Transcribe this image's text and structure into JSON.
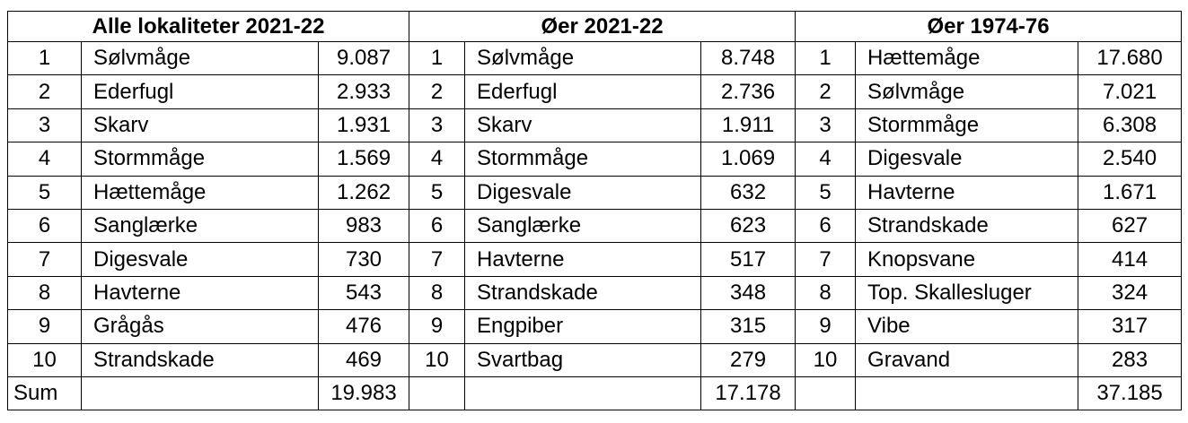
{
  "sections": [
    {
      "title": "Alle lokaliteter 2021-22",
      "rows": [
        {
          "rank": "1",
          "species": "Sølvmåge",
          "count": "9.087"
        },
        {
          "rank": "2",
          "species": "Ederfugl",
          "count": "2.933"
        },
        {
          "rank": "3",
          "species": "Skarv",
          "count": "1.931"
        },
        {
          "rank": "4",
          "species": "Stormmåge",
          "count": "1.569"
        },
        {
          "rank": "5",
          "species": "Hættemåge",
          "count": "1.262"
        },
        {
          "rank": "6",
          "species": "Sanglærke",
          "count": "983"
        },
        {
          "rank": "7",
          "species": "Digesvale",
          "count": "730"
        },
        {
          "rank": "8",
          "species": "Havterne",
          "count": "543"
        },
        {
          "rank": "9",
          "species": "Grågås",
          "count": "476"
        },
        {
          "rank": "10",
          "species": "Strandskade",
          "count": "469"
        }
      ],
      "sum": "19.983"
    },
    {
      "title": "Øer 2021-22",
      "rows": [
        {
          "rank": "1",
          "species": "Sølvmåge",
          "count": "8.748"
        },
        {
          "rank": "2",
          "species": "Ederfugl",
          "count": "2.736"
        },
        {
          "rank": "3",
          "species": "Skarv",
          "count": "1.911"
        },
        {
          "rank": "4",
          "species": "Stormmåge",
          "count": "1.069"
        },
        {
          "rank": "5",
          "species": "Digesvale",
          "count": "632"
        },
        {
          "rank": "6",
          "species": "Sanglærke",
          "count": "623"
        },
        {
          "rank": "7",
          "species": "Havterne",
          "count": "517"
        },
        {
          "rank": "8",
          "species": "Strandskade",
          "count": "348"
        },
        {
          "rank": "9",
          "species": "Engpiber",
          "count": "315"
        },
        {
          "rank": "10",
          "species": "Svartbag",
          "count": "279"
        }
      ],
      "sum": "17.178"
    },
    {
      "title": "Øer 1974-76",
      "rows": [
        {
          "rank": "1",
          "species": "Hættemåge",
          "count": "17.680"
        },
        {
          "rank": "2",
          "species": "Sølvmåge",
          "count": "7.021"
        },
        {
          "rank": "3",
          "species": "Stormmåge",
          "count": "6.308"
        },
        {
          "rank": "4",
          "species": "Digesvale",
          "count": "2.540"
        },
        {
          "rank": "5",
          "species": "Havterne",
          "count": "1.671"
        },
        {
          "rank": "6",
          "species": "Strandskade",
          "count": "627"
        },
        {
          "rank": "7",
          "species": "Knopsvane",
          "count": "414"
        },
        {
          "rank": "8",
          "species": "Top. Skallesluger",
          "count": "324"
        },
        {
          "rank": "9",
          "species": "Vibe",
          "count": "317"
        },
        {
          "rank": "10",
          "species": "Gravand",
          "count": "283"
        }
      ],
      "sum": "37.185"
    }
  ],
  "sum_label": "Sum"
}
